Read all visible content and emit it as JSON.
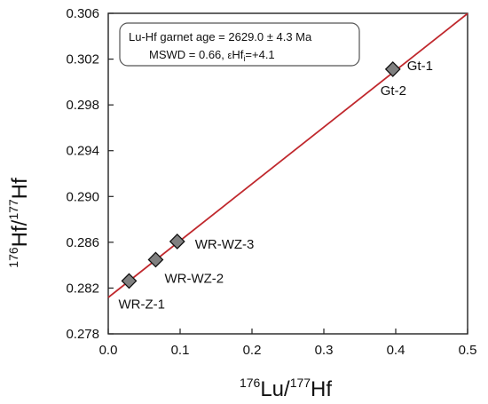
{
  "chart_data": {
    "type": "scatter",
    "xlabel": {
      "sup1": "176",
      "base1": "Lu/",
      "sup2": "177",
      "base2": "Hf"
    },
    "ylabel": {
      "sup1": "176",
      "base1": "Hf/",
      "sup2": "177",
      "base2": "Hf"
    },
    "xlim": [
      0.0,
      0.5
    ],
    "ylim": [
      0.278,
      0.306
    ],
    "xticks": [
      0.0,
      0.1,
      0.2,
      0.3,
      0.4,
      0.5
    ],
    "xtick_labels": [
      "0.0",
      "0.1",
      "0.2",
      "0.3",
      "0.4",
      "0.5"
    ],
    "yticks": [
      0.278,
      0.282,
      0.286,
      0.29,
      0.294,
      0.298,
      0.302,
      0.306
    ],
    "ytick_labels": [
      "0.278",
      "0.282",
      "0.286",
      "0.290",
      "0.294",
      "0.298",
      "0.302",
      "0.306"
    ],
    "grid": false,
    "isochron": {
      "x": [
        0.0,
        0.5
      ],
      "y": [
        0.28118,
        0.30598
      ],
      "color": "#c0282d"
    },
    "points": [
      {
        "label": "WR-Z-1",
        "x": 0.029,
        "y": 0.28262
      },
      {
        "label": "WR-WZ-2",
        "x": 0.066,
        "y": 0.28448
      },
      {
        "label": "WR-WZ-3",
        "x": 0.096,
        "y": 0.28607
      },
      {
        "label": "Gt-1",
        "x": 0.396,
        "y": 0.30112
      },
      {
        "label": "Gt-2",
        "x": 0.396,
        "y": 0.30112
      }
    ],
    "marker": {
      "shape": "diamond",
      "fill": "#808080",
      "stroke": "#111111"
    },
    "annotation": {
      "line1": "Lu-Hf garnet age = 2629.0 ± 4.3 Ma",
      "line2_prefix": "MSWD = 0.66, ",
      "line2_eps": "ε",
      "line2_hf": "Hf",
      "line2_sub": "i",
      "line2_suffix": "=+4.1"
    }
  }
}
